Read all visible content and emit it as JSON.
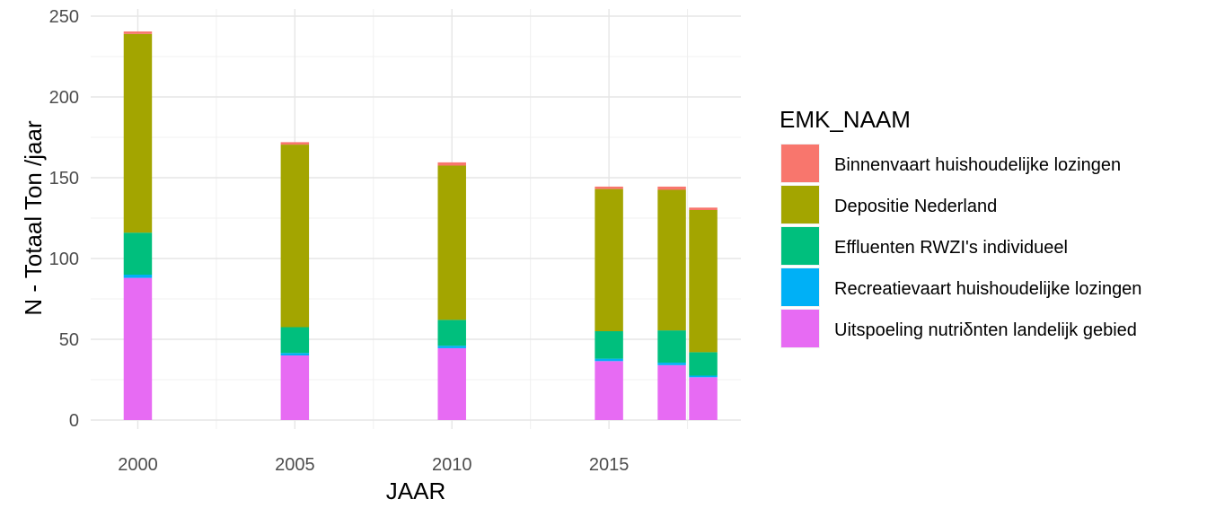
{
  "chart_data": {
    "type": "bar",
    "stacked": true,
    "x": [
      2000,
      2005,
      2010,
      2015,
      2017,
      2018
    ],
    "series": [
      {
        "name": "Uitspoeling nutriδnten landelijk gebied",
        "color": "#E76BF3",
        "values": [
          88,
          40,
          44.5,
          36.5,
          34,
          26.5
        ]
      },
      {
        "name": "Recreatievaart huishoudelijke lozingen",
        "color": "#00B0F6",
        "values": [
          2,
          1.5,
          1.5,
          1.5,
          1.5,
          1
        ]
      },
      {
        "name": "Effluenten RWZI's  individueel",
        "color": "#00BF7D",
        "values": [
          26,
          16,
          16,
          17,
          20,
          14.5
        ]
      },
      {
        "name": "Depositie Nederland",
        "color": "#A3A500",
        "values": [
          123,
          113,
          95.5,
          88,
          87,
          88
        ]
      },
      {
        "name": "Binnenvaart huishoudelijke lozingen",
        "color": "#F8766D",
        "values": [
          1.5,
          1.5,
          2,
          1.5,
          2,
          1.5
        ]
      }
    ],
    "xlabel": "JAAR",
    "ylabel": "N - Totaal Ton /jaar",
    "xlim": [
      1998.5,
      2019.2
    ],
    "ylim": [
      0,
      250
    ],
    "xticks": [
      2000,
      2005,
      2010,
      2015
    ],
    "yticks": [
      0,
      50,
      100,
      150,
      200,
      250
    ],
    "bar_width_years": 0.9,
    "grid": true,
    "legend": {
      "title": "EMK_NAAM",
      "position": "right",
      "entries": [
        {
          "label": "Binnenvaart huishoudelijke lozingen",
          "color": "#F8766D"
        },
        {
          "label": "Depositie Nederland",
          "color": "#A3A500"
        },
        {
          "label": "Effluenten RWZI's  individueel",
          "color": "#00BF7D"
        },
        {
          "label": "Recreatievaart huishoudelijke lozingen",
          "color": "#00B0F6"
        },
        {
          "label": "Uitspoeling nutriδnten landelijk gebied",
          "color": "#E76BF3"
        }
      ]
    }
  }
}
